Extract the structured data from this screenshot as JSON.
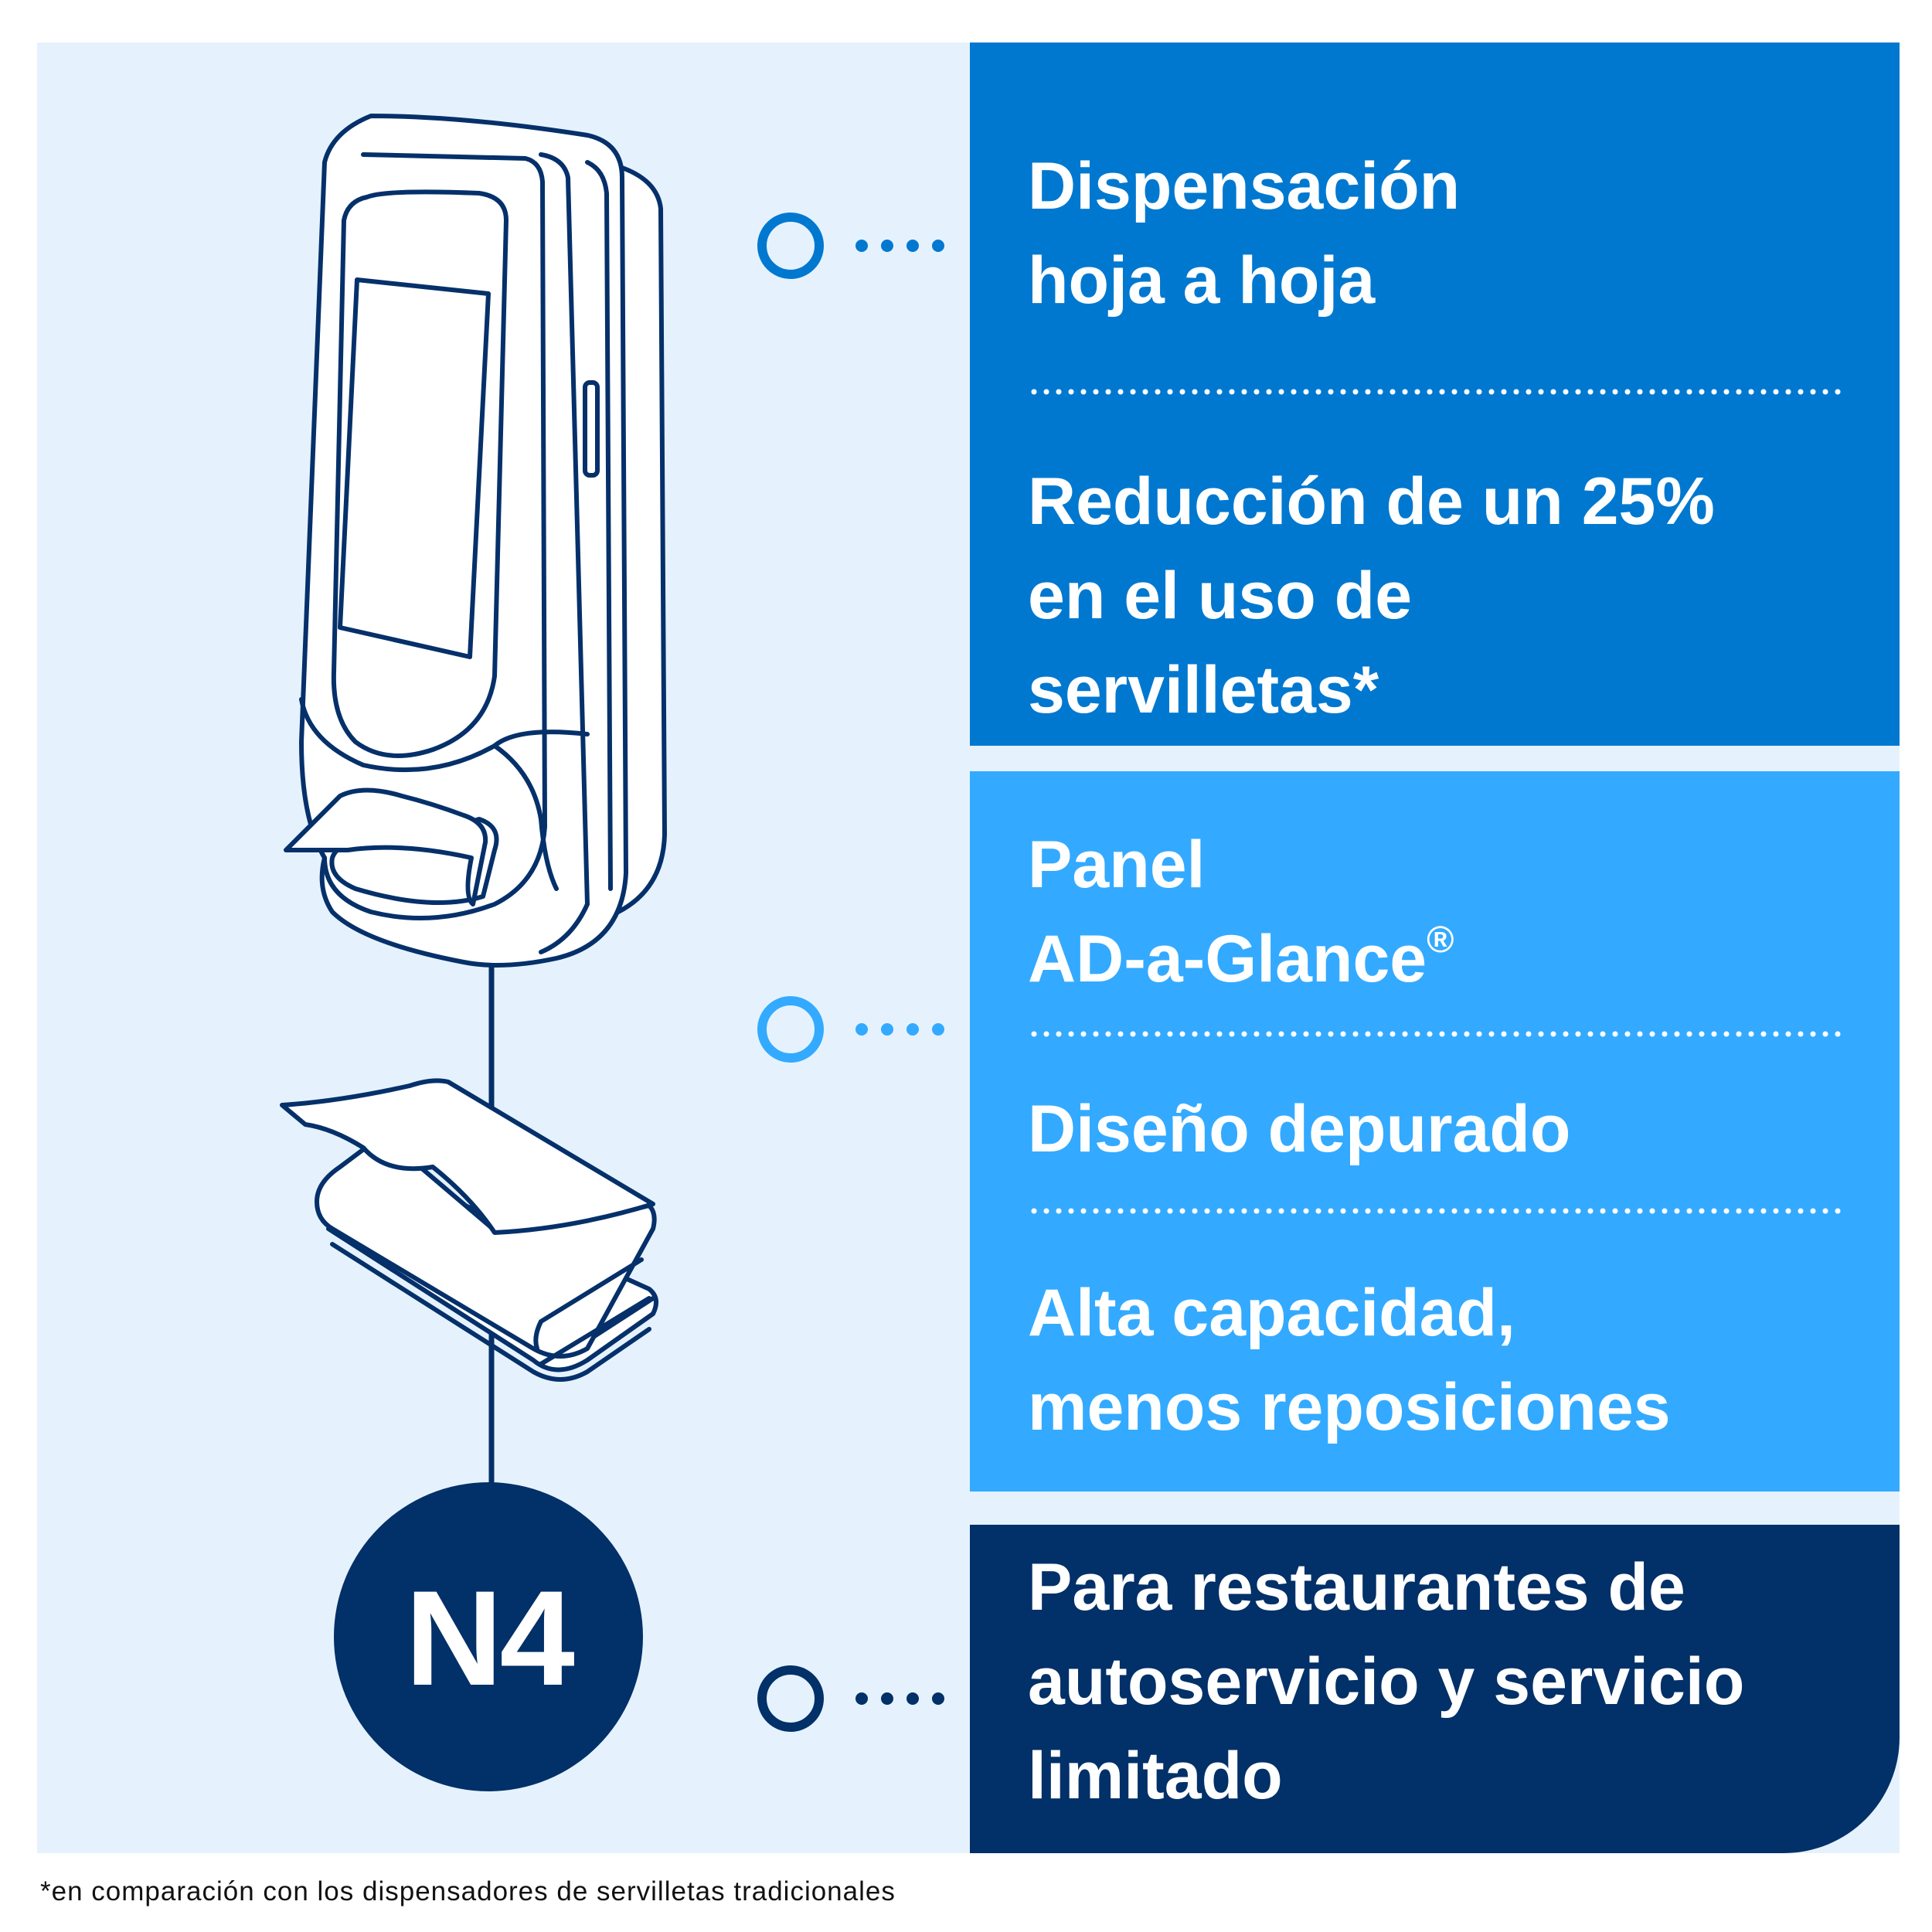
{
  "panels": [
    {
      "id": "sheet-dispensing",
      "items": [
        {
          "text": "Dispensación\nhoja a hoja"
        },
        {
          "text": "Reducción de un 25%\nen el uso de\nservilletas*"
        }
      ]
    },
    {
      "id": "ad-panel",
      "items": [
        {
          "text": "Panel\nAD-a-Glance",
          "suffix": "®"
        },
        {
          "text": "Diseño depurado"
        },
        {
          "text": "Alta capacidad,\nmenos reposiciones"
        }
      ]
    },
    {
      "id": "restaurants",
      "items": [
        {
          "text": "Para restaurantes de\nautoservicio y servicio\nlimitado"
        }
      ]
    }
  ],
  "badge": {
    "label": "N4"
  },
  "footnote": "*en comparación con los dispensadores de servilletas tradicionales",
  "colors": {
    "background": "#e5f2fd",
    "panel_1": "#0078d0",
    "panel_2": "#33aaff",
    "panel_3": "#023068",
    "outline": "#05306a",
    "connector_1": "#0078d0",
    "connector_2": "#33aaff",
    "connector_3": "#023068"
  },
  "icons": [
    "napkin-dispenser-icon",
    "folded-napkins-icon",
    "connector-circle-icon"
  ]
}
